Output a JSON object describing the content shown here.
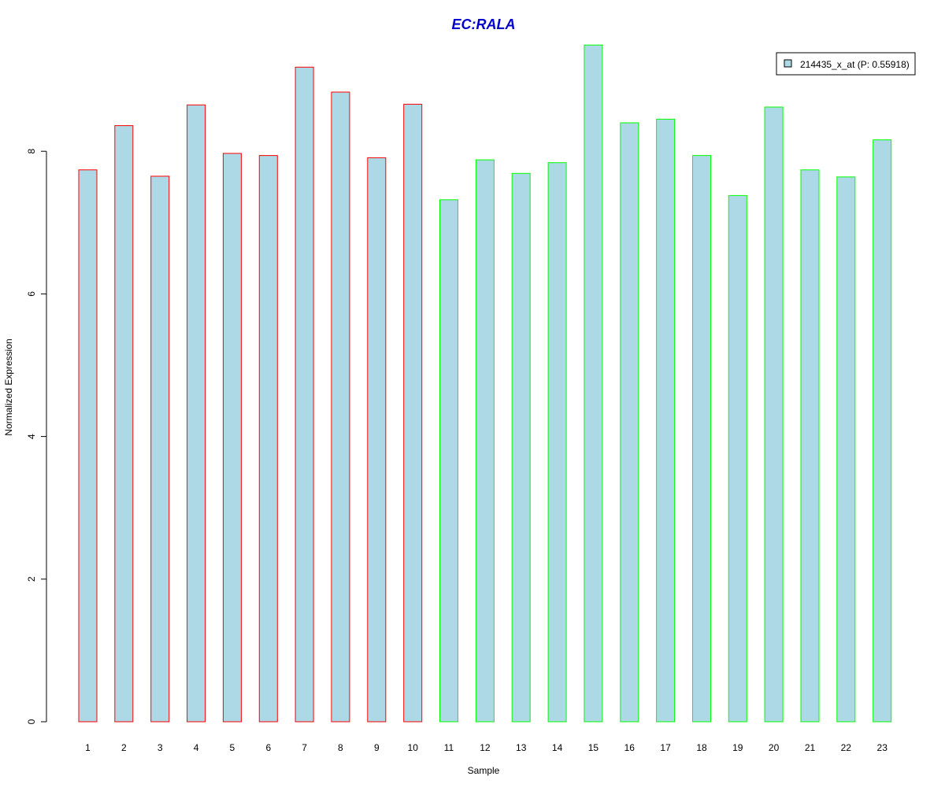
{
  "chart_data": {
    "type": "bar",
    "title": "EC:RALA",
    "xlabel": "Sample",
    "ylabel": "Normalized Expression",
    "categories": [
      "1",
      "2",
      "3",
      "4",
      "5",
      "6",
      "7",
      "8",
      "9",
      "10",
      "11",
      "12",
      "13",
      "14",
      "15",
      "16",
      "17",
      "18",
      "19",
      "20",
      "21",
      "22",
      "23"
    ],
    "series": [
      {
        "name": "214435_x_at (P: 0.55918)",
        "values": [
          7.74,
          8.36,
          7.65,
          8.65,
          7.97,
          7.94,
          9.18,
          8.83,
          7.91,
          8.66,
          7.32,
          7.88,
          7.69,
          7.84,
          9.49,
          8.4,
          8.45,
          7.94,
          7.38,
          8.62,
          7.74,
          7.64,
          8.16
        ],
        "fill": "#add8e6",
        "border_colors": [
          "#ff0000",
          "#ff0000",
          "#ff0000",
          "#ff0000",
          "#ff0000",
          "#ff0000",
          "#ff0000",
          "#ff0000",
          "#ff0000",
          "#ff0000",
          "#00ff00",
          "#00ff00",
          "#00ff00",
          "#00ff00",
          "#00ff00",
          "#00ff00",
          "#00ff00",
          "#00ff00",
          "#00ff00",
          "#00ff00",
          "#00ff00",
          "#00ff00",
          "#00ff00"
        ]
      }
    ],
    "yticks": [
      "0",
      "2",
      "4",
      "6",
      "8"
    ],
    "ylim": [
      0,
      9.6
    ],
    "grid": false,
    "legend_position": "top-right",
    "title_color": "#0000cd"
  }
}
